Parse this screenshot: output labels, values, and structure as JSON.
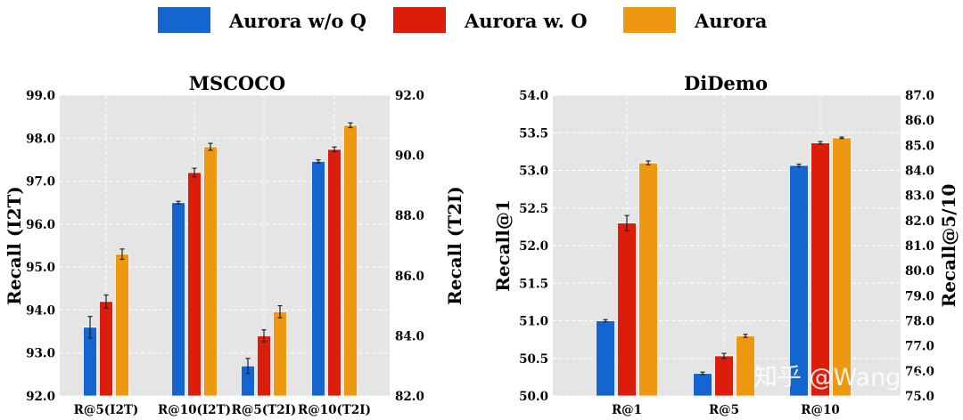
{
  "colors": {
    "series": [
      "#1565d0",
      "#dd1d0c",
      "#ee9710"
    ],
    "plot_bg": "#e5e5e5",
    "grid": "#ffffff"
  },
  "legend": [
    "Aurora w/o Q",
    "Aurora w. O",
    "Aurora"
  ],
  "watermark": "知乎 @Wang.nx",
  "chart_data": [
    {
      "type": "bar",
      "title": "MSCOCO",
      "categories": [
        "R@5(I2T)",
        "R@10(I2T)",
        "R@5(T2I)",
        "R@10(T2I)"
      ],
      "ylabel": "Recall (I2T)",
      "y2label": "Recall (T2I)",
      "ylim": [
        92.0,
        99.0
      ],
      "y2lim": [
        82.0,
        92.0
      ],
      "yticks": [
        "92.0",
        "93.0",
        "94.0",
        "95.0",
        "96.0",
        "97.0",
        "98.0",
        "99.0"
      ],
      "y2ticks": [
        "82.0",
        "84.0",
        "86.0",
        "88.0",
        "90.0",
        "92.0"
      ],
      "series": [
        {
          "name": "Aurora w/o Q",
          "values": [
            93.6,
            96.5,
            83.0,
            89.8
          ],
          "errors": [
            0.25,
            0.03,
            0.25,
            0.05
          ],
          "axis": [
            1,
            1,
            2,
            2
          ]
        },
        {
          "name": "Aurora w. O",
          "values": [
            94.2,
            97.2,
            84.0,
            90.2
          ],
          "errors": [
            0.15,
            0.1,
            0.2,
            0.08
          ],
          "axis": [
            1,
            1,
            2,
            2
          ]
        },
        {
          "name": "Aurora",
          "values": [
            95.3,
            97.8,
            84.8,
            91.0
          ],
          "errors": [
            0.12,
            0.08,
            0.2,
            0.08
          ],
          "axis": [
            1,
            1,
            2,
            2
          ]
        }
      ]
    },
    {
      "type": "bar",
      "title": "DiDemo",
      "categories": [
        "R@1",
        "R@5",
        "R@10"
      ],
      "ylabel": "Recall@1",
      "y2label": "Recall@5/10",
      "ylim": [
        50.0,
        54.0
      ],
      "y2lim": [
        75.0,
        87.0
      ],
      "yticks": [
        "50.0",
        "50.5",
        "51.0",
        "51.5",
        "52.0",
        "52.5",
        "53.0",
        "53.5",
        "54.0"
      ],
      "y2ticks": [
        "75.0",
        "76.0",
        "77.0",
        "78.0",
        "79.0",
        "80.0",
        "81.0",
        "82.0",
        "83.0",
        "84.0",
        "85.0",
        "86.0",
        "87.0"
      ],
      "series": [
        {
          "name": "Aurora w/o Q",
          "values": [
            51.0,
            75.9,
            84.2
          ],
          "errors": [
            0.015,
            0.05,
            0.05
          ],
          "axis": [
            1,
            2,
            2
          ]
        },
        {
          "name": "Aurora w. O",
          "values": [
            52.3,
            76.6,
            85.1
          ],
          "errors": [
            0.1,
            0.1,
            0.05
          ],
          "axis": [
            1,
            2,
            2
          ]
        },
        {
          "name": "Aurora",
          "values": [
            53.1,
            77.4,
            85.3
          ],
          "errors": [
            0.025,
            0.06,
            0.03
          ],
          "axis": [
            1,
            2,
            2
          ]
        }
      ]
    }
  ]
}
